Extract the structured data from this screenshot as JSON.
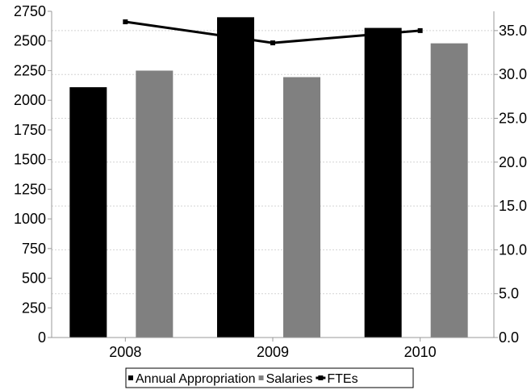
{
  "chart_data": {
    "type": "bar",
    "categories": [
      "2008",
      "2009",
      "2010"
    ],
    "series": [
      {
        "name": "Annual Appropriation",
        "kind": "bar",
        "axis": "left",
        "color": "#000000",
        "values": [
          2110,
          2700,
          2610
        ]
      },
      {
        "name": "Salaries",
        "kind": "bar",
        "axis": "left",
        "color": "#808080",
        "values": [
          2250,
          2195,
          2480
        ]
      },
      {
        "name": "FTEs",
        "kind": "line",
        "axis": "right",
        "color": "#000000",
        "values": [
          36.0,
          33.6,
          35.0
        ]
      }
    ],
    "y_left": {
      "ylim": [
        0,
        2750
      ],
      "ticks": [
        "0",
        "250",
        "500",
        "750",
        "1000",
        "1250",
        "1500",
        "1750",
        "2000",
        "2250",
        "2500",
        "2750"
      ]
    },
    "y_right": {
      "ylim": [
        0,
        37.2
      ],
      "ticks": [
        "0.0",
        "5.0",
        "10.0",
        "15.0",
        "20.0",
        "25.0",
        "30.0",
        "35.0"
      ]
    },
    "grid": true,
    "legend": {
      "position": "bottom",
      "entries": [
        "Annual Appropriation",
        "Salaries",
        "FTEs"
      ]
    },
    "title": "",
    "xlabel": "",
    "ylabel": ""
  }
}
